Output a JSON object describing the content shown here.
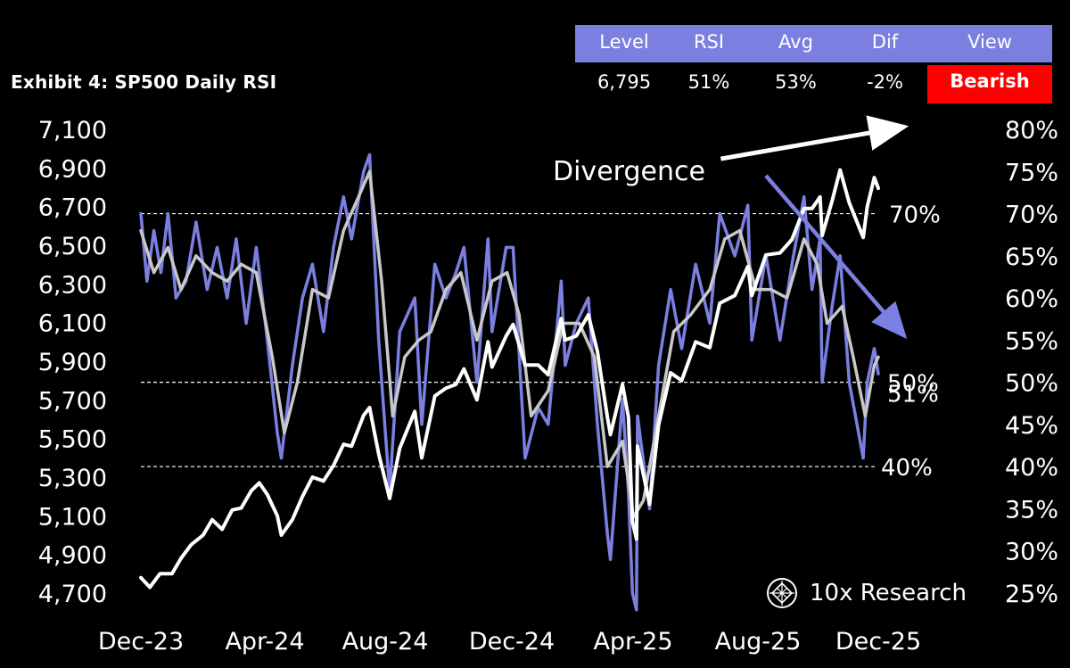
{
  "title": "Exhibit 4: SP500 Daily  RSI",
  "stats_table": {
    "headers": [
      "Level",
      "RSI",
      "Avg",
      "Dif",
      "View"
    ],
    "values": [
      "6,795",
      "51%",
      "53%",
      "-2%",
      "Bearish"
    ]
  },
  "brand": "10x Research",
  "colors": {
    "background": "#000000",
    "price": "#ffffff",
    "rsi": "#7b7fe0",
    "rsi_avg": "#c8c8c8",
    "header_bg": "#7b7fe0",
    "bearish": "#ff0000"
  },
  "chart_data": {
    "type": "line",
    "x_ticks": [
      "Dec-23",
      "Apr-24",
      "Aug-24",
      "Dec-24",
      "Apr-25",
      "Aug-25",
      "Dec-25"
    ],
    "x_range": [
      "2023-12-01",
      "2025-12-05"
    ],
    "y_left": {
      "ticks": [
        "7,100",
        "6,900",
        "6,700",
        "6,500",
        "6,300",
        "6,100",
        "5,900",
        "5,700",
        "5,500",
        "5,300",
        "5,100",
        "4,900",
        "4,700"
      ],
      "range": [
        4700,
        7100
      ]
    },
    "y_right": {
      "ticks": [
        "80%",
        "75%",
        "70%",
        "65%",
        "60%",
        "55%",
        "50%",
        "45%",
        "40%",
        "35%",
        "30%",
        "25%"
      ],
      "range": [
        25,
        80
      ]
    },
    "reference_lines": [
      {
        "value": 70,
        "label": "70%"
      },
      {
        "value": 50,
        "label": "50%"
      },
      {
        "value": 40,
        "label": "40%"
      }
    ],
    "last_value_label": "51%",
    "annotation": "Divergence",
    "series": [
      {
        "axis": "left",
        "color": "#ffffff",
        "points": [
          [
            "2023-12-01",
            4780
          ],
          [
            "2023-12-10",
            4730
          ],
          [
            "2023-12-20",
            4800
          ],
          [
            "2024-01-01",
            4800
          ],
          [
            "2024-01-10",
            4880
          ],
          [
            "2024-01-20",
            4950
          ],
          [
            "2024-02-01",
            5000
          ],
          [
            "2024-02-10",
            5080
          ],
          [
            "2024-02-20",
            5030
          ],
          [
            "2024-03-01",
            5130
          ],
          [
            "2024-03-10",
            5140
          ],
          [
            "2024-03-20",
            5230
          ],
          [
            "2024-03-28",
            5270
          ],
          [
            "2024-04-05",
            5210
          ],
          [
            "2024-04-15",
            5100
          ],
          [
            "2024-04-19",
            5000
          ],
          [
            "2024-04-30",
            5080
          ],
          [
            "2024-05-10",
            5200
          ],
          [
            "2024-05-20",
            5300
          ],
          [
            "2024-05-31",
            5280
          ],
          [
            "2024-06-10",
            5360
          ],
          [
            "2024-06-20",
            5470
          ],
          [
            "2024-06-28",
            5460
          ],
          [
            "2024-07-10",
            5620
          ],
          [
            "2024-07-16",
            5660
          ],
          [
            "2024-07-25",
            5420
          ],
          [
            "2024-08-05",
            5190
          ],
          [
            "2024-08-15",
            5450
          ],
          [
            "2024-08-30",
            5640
          ],
          [
            "2024-09-06",
            5400
          ],
          [
            "2024-09-19",
            5720
          ],
          [
            "2024-09-30",
            5760
          ],
          [
            "2024-10-10",
            5780
          ],
          [
            "2024-10-18",
            5860
          ],
          [
            "2024-10-31",
            5700
          ],
          [
            "2024-11-11",
            6000
          ],
          [
            "2024-11-15",
            5870
          ],
          [
            "2024-11-29",
            6030
          ],
          [
            "2024-12-06",
            6090
          ],
          [
            "2024-12-18",
            5880
          ],
          [
            "2024-12-31",
            5880
          ],
          [
            "2025-01-10",
            5830
          ],
          [
            "2025-01-23",
            6120
          ],
          [
            "2025-01-27",
            6010
          ],
          [
            "2025-02-07",
            6030
          ],
          [
            "2025-02-19",
            6140
          ],
          [
            "2025-02-28",
            5950
          ],
          [
            "2025-03-10",
            5610
          ],
          [
            "2025-03-13",
            5520
          ],
          [
            "2025-03-25",
            5780
          ],
          [
            "2025-03-31",
            5610
          ],
          [
            "2025-04-04",
            5070
          ],
          [
            "2025-04-08",
            4980
          ],
          [
            "2025-04-09",
            5460
          ],
          [
            "2025-04-21",
            5160
          ],
          [
            "2025-04-30",
            5570
          ],
          [
            "2025-05-12",
            5840
          ],
          [
            "2025-05-23",
            5800
          ],
          [
            "2025-06-06",
            6000
          ],
          [
            "2025-06-20",
            5970
          ],
          [
            "2025-06-30",
            6200
          ],
          [
            "2025-07-15",
            6240
          ],
          [
            "2025-07-28",
            6390
          ],
          [
            "2025-08-01",
            6240
          ],
          [
            "2025-08-15",
            6450
          ],
          [
            "2025-08-29",
            6460
          ],
          [
            "2025-09-10",
            6530
          ],
          [
            "2025-09-22",
            6690
          ],
          [
            "2025-09-30",
            6690
          ],
          [
            "2025-10-08",
            6750
          ],
          [
            "2025-10-10",
            6550
          ],
          [
            "2025-10-20",
            6730
          ],
          [
            "2025-10-28",
            6890
          ],
          [
            "2025-11-06",
            6720
          ],
          [
            "2025-11-20",
            6540
          ],
          [
            "2025-11-24",
            6700
          ],
          [
            "2025-12-01",
            6850
          ],
          [
            "2025-12-05",
            6795
          ]
        ]
      },
      {
        "axis": "right",
        "color": "#7b7fe0",
        "points": [
          [
            "2023-12-01",
            70
          ],
          [
            "2023-12-07",
            62
          ],
          [
            "2023-12-14",
            68
          ],
          [
            "2023-12-21",
            63
          ],
          [
            "2023-12-28",
            70
          ],
          [
            "2024-01-05",
            60
          ],
          [
            "2024-01-15",
            62
          ],
          [
            "2024-01-25",
            69
          ],
          [
            "2024-02-05",
            61
          ],
          [
            "2024-02-15",
            66
          ],
          [
            "2024-02-25",
            60
          ],
          [
            "2024-03-05",
            67
          ],
          [
            "2024-03-15",
            57
          ],
          [
            "2024-03-25",
            66
          ],
          [
            "2024-04-05",
            55
          ],
          [
            "2024-04-15",
            44
          ],
          [
            "2024-04-19",
            41
          ],
          [
            "2024-04-30",
            52
          ],
          [
            "2024-05-10",
            60
          ],
          [
            "2024-05-20",
            64
          ],
          [
            "2024-05-31",
            56
          ],
          [
            "2024-06-10",
            66
          ],
          [
            "2024-06-20",
            72
          ],
          [
            "2024-06-28",
            67
          ],
          [
            "2024-07-10",
            75
          ],
          [
            "2024-07-16",
            77
          ],
          [
            "2024-07-25",
            55
          ],
          [
            "2024-08-05",
            37
          ],
          [
            "2024-08-15",
            56
          ],
          [
            "2024-08-30",
            60
          ],
          [
            "2024-09-06",
            45
          ],
          [
            "2024-09-19",
            64
          ],
          [
            "2024-09-30",
            60
          ],
          [
            "2024-10-10",
            63
          ],
          [
            "2024-10-18",
            66
          ],
          [
            "2024-10-31",
            50
          ],
          [
            "2024-11-11",
            67
          ],
          [
            "2024-11-15",
            56
          ],
          [
            "2024-11-29",
            66
          ],
          [
            "2024-12-06",
            66
          ],
          [
            "2024-12-18",
            41
          ],
          [
            "2024-12-31",
            47
          ],
          [
            "2025-01-10",
            45
          ],
          [
            "2025-01-23",
            62
          ],
          [
            "2025-01-27",
            52
          ],
          [
            "2025-02-07",
            57
          ],
          [
            "2025-02-19",
            60
          ],
          [
            "2025-02-28",
            45
          ],
          [
            "2025-03-10",
            32
          ],
          [
            "2025-03-13",
            29
          ],
          [
            "2025-03-25",
            48
          ],
          [
            "2025-03-31",
            37
          ],
          [
            "2025-04-04",
            25
          ],
          [
            "2025-04-08",
            23
          ],
          [
            "2025-04-09",
            46
          ],
          [
            "2025-04-21",
            35
          ],
          [
            "2025-04-30",
            52
          ],
          [
            "2025-05-12",
            61
          ],
          [
            "2025-05-23",
            54
          ],
          [
            "2025-06-06",
            64
          ],
          [
            "2025-06-20",
            57
          ],
          [
            "2025-06-30",
            70
          ],
          [
            "2025-07-15",
            65
          ],
          [
            "2025-07-28",
            71
          ],
          [
            "2025-08-01",
            55
          ],
          [
            "2025-08-15",
            65
          ],
          [
            "2025-08-29",
            55
          ],
          [
            "2025-09-10",
            64
          ],
          [
            "2025-09-22",
            72
          ],
          [
            "2025-09-30",
            61
          ],
          [
            "2025-10-08",
            67
          ],
          [
            "2025-10-10",
            50
          ],
          [
            "2025-10-20",
            59
          ],
          [
            "2025-10-28",
            65
          ],
          [
            "2025-11-06",
            50
          ],
          [
            "2025-11-20",
            41
          ],
          [
            "2025-11-24",
            50
          ],
          [
            "2025-12-01",
            54
          ],
          [
            "2025-12-05",
            51
          ]
        ]
      },
      {
        "axis": "right",
        "color": "#c8c8c8",
        "points": [
          [
            "2023-12-01",
            68
          ],
          [
            "2023-12-14",
            63
          ],
          [
            "2023-12-28",
            66
          ],
          [
            "2024-01-10",
            61
          ],
          [
            "2024-01-25",
            65
          ],
          [
            "2024-02-10",
            63
          ],
          [
            "2024-02-25",
            62
          ],
          [
            "2024-03-10",
            64
          ],
          [
            "2024-03-25",
            63
          ],
          [
            "2024-04-10",
            53
          ],
          [
            "2024-04-22",
            44
          ],
          [
            "2024-05-05",
            50
          ],
          [
            "2024-05-20",
            61
          ],
          [
            "2024-06-05",
            60
          ],
          [
            "2024-06-20",
            68
          ],
          [
            "2024-07-05",
            72
          ],
          [
            "2024-07-16",
            75
          ],
          [
            "2024-07-28",
            62
          ],
          [
            "2024-08-08",
            46
          ],
          [
            "2024-08-20",
            53
          ],
          [
            "2024-09-03",
            55
          ],
          [
            "2024-09-15",
            56
          ],
          [
            "2024-09-30",
            61
          ],
          [
            "2024-10-15",
            63
          ],
          [
            "2024-10-31",
            55
          ],
          [
            "2024-11-15",
            62
          ],
          [
            "2024-11-30",
            63
          ],
          [
            "2024-12-12",
            58
          ],
          [
            "2024-12-24",
            46
          ],
          [
            "2025-01-10",
            49
          ],
          [
            "2025-01-25",
            57
          ],
          [
            "2025-02-10",
            57
          ],
          [
            "2025-02-25",
            53
          ],
          [
            "2025-03-10",
            40
          ],
          [
            "2025-03-25",
            43
          ],
          [
            "2025-04-05",
            34
          ],
          [
            "2025-04-15",
            36
          ],
          [
            "2025-04-30",
            46
          ],
          [
            "2025-05-15",
            56
          ],
          [
            "2025-06-01",
            58
          ],
          [
            "2025-06-20",
            61
          ],
          [
            "2025-07-05",
            67
          ],
          [
            "2025-07-20",
            68
          ],
          [
            "2025-08-05",
            61
          ],
          [
            "2025-08-20",
            61
          ],
          [
            "2025-09-05",
            60
          ],
          [
            "2025-09-22",
            67
          ],
          [
            "2025-10-05",
            64
          ],
          [
            "2025-10-15",
            57
          ],
          [
            "2025-10-30",
            59
          ],
          [
            "2025-11-10",
            53
          ],
          [
            "2025-11-22",
            46
          ],
          [
            "2025-12-01",
            52
          ],
          [
            "2025-12-05",
            53
          ]
        ]
      }
    ],
    "arrows": [
      {
        "direction": "up",
        "from": [
          "2025-07-01",
          76.5
        ],
        "to": [
          "2025-12-31",
          80.3
        ]
      },
      {
        "direction": "down",
        "from": [
          "2025-08-15",
          74.5
        ],
        "to": [
          "2025-12-31",
          55.5
        ]
      }
    ]
  }
}
